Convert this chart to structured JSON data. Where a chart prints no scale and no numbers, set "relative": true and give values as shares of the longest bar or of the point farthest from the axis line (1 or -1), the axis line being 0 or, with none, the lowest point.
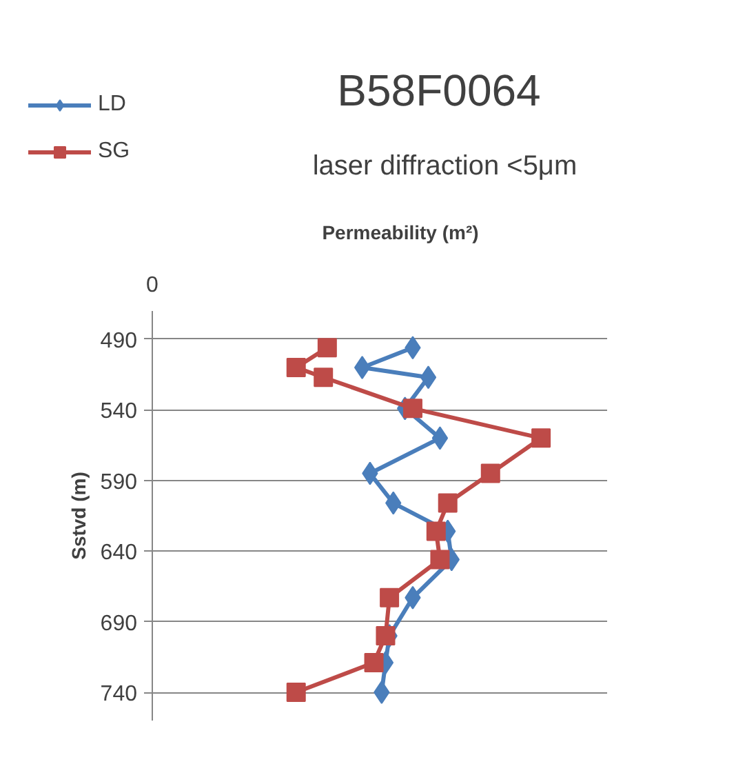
{
  "chart_data": {
    "type": "line",
    "title": "B58F0064",
    "subtitle": "laser diffraction  <5μm",
    "xlabel": "Permeability (m²)",
    "ylabel": "Sstvd (m)",
    "orientation": "horizontal",
    "relative": true,
    "annotations": [
      "0"
    ],
    "ylim": [
      760,
      470
    ],
    "yticks": [
      490,
      540,
      590,
      640,
      690,
      740
    ],
    "grid": "y",
    "legend": "top left",
    "line_style": "solid",
    "series": [
      {
        "name": "LD",
        "color": "#4a7ebb",
        "marker": "diamond",
        "x": [
          496,
          510,
          517,
          539,
          560,
          585,
          606,
          626,
          646,
          673,
          700,
          719,
          740
        ],
        "values": [
          0.67,
          0.54,
          0.71,
          0.65,
          0.74,
          0.56,
          0.62,
          0.76,
          0.77,
          0.67,
          0.61,
          0.6,
          0.59
        ]
      },
      {
        "name": "SG",
        "color": "#be4b48",
        "marker": "square",
        "x": [
          496,
          510,
          517,
          539,
          560,
          585,
          606,
          626,
          646,
          673,
          700,
          719,
          740
        ],
        "values": [
          0.45,
          0.37,
          0.44,
          0.67,
          1.0,
          0.87,
          0.76,
          0.73,
          0.74,
          0.61,
          0.6,
          0.57,
          0.37
        ]
      }
    ]
  }
}
